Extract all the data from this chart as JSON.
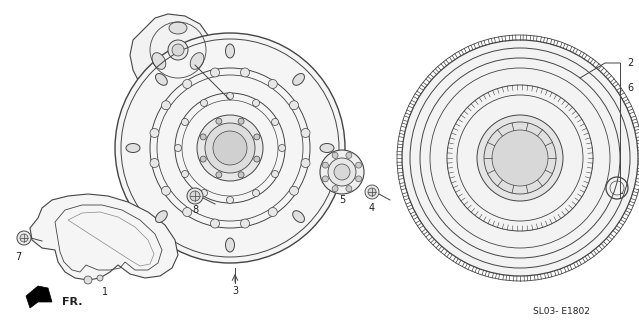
{
  "bg_color": "#ffffff",
  "line_color": "#444444",
  "text_color": "#222222",
  "fig_width": 6.39,
  "fig_height": 3.2,
  "dpi": 100,
  "footer": "SL03- E1802",
  "fr_label": "FR."
}
